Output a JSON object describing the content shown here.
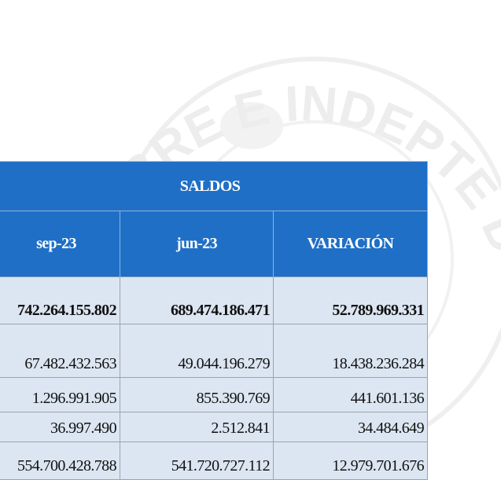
{
  "watermark": "LIBRE E INDEPTE DE CUNDINCA",
  "table": {
    "title": "SALDOS",
    "columns": [
      "sep-23",
      "jun-23",
      "VARIACIÓN"
    ],
    "rows": [
      [
        "742.264.155.802",
        "689.474.186.471",
        "52.789.969.331"
      ],
      [
        "67.482.432.563",
        "49.044.196.279",
        "18.438.236.284"
      ],
      [
        "1.296.991.905",
        "855.390.769",
        "441.601.136"
      ],
      [
        "36.997.490",
        "2.512.841",
        "34.484.649"
      ],
      [
        "554.700.428.788",
        "541.720.727.112",
        "12.979.701.676"
      ]
    ]
  }
}
